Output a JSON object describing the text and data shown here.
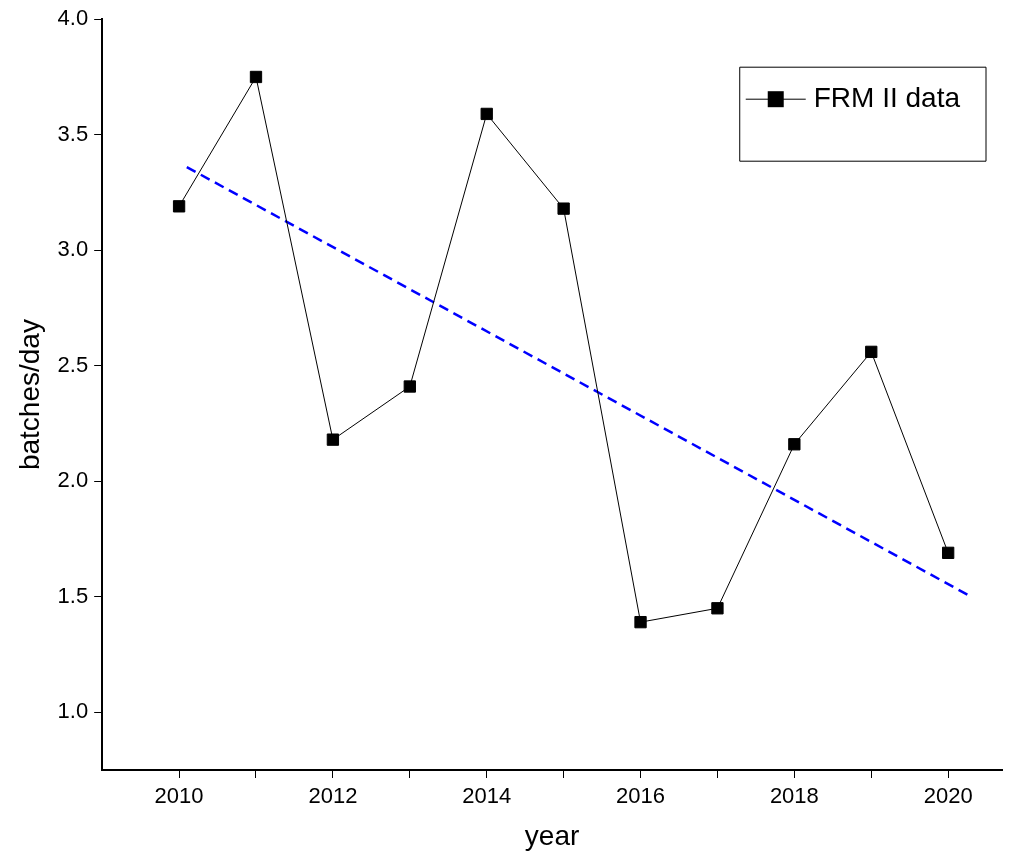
{
  "chart_data": {
    "type": "line",
    "xlabel": "year",
    "ylabel": "batches/day",
    "xlim": [
      2009,
      2020.7
    ],
    "ylim": [
      0.75,
      4.0
    ],
    "xticks": [
      2010,
      {
        "value": 2011,
        "label": null
      },
      2012,
      {
        "value": 2013,
        "label": null
      },
      2014,
      {
        "value": 2015,
        "label": null
      },
      2016,
      {
        "value": 2017,
        "label": null
      },
      2018,
      {
        "value": 2019,
        "label": null
      },
      2020
    ],
    "yticks": [
      {
        "value": 1.0,
        "label": "1.0"
      },
      1.5,
      {
        "value": 2.0,
        "label": "2.0"
      },
      2.5,
      {
        "value": 3.0,
        "label": "3.0"
      },
      3.5,
      {
        "value": 4.0,
        "label": "4.0"
      }
    ],
    "grid": false,
    "legend": "top right",
    "marker": "square",
    "line_style": "solid",
    "series": [
      {
        "name": "FRM II data",
        "color": "#000000",
        "x": [
          2010,
          2011,
          2012,
          2013,
          2014,
          2015,
          2016,
          2017,
          2018,
          2019,
          2020
        ],
        "values": [
          3.19,
          3.75,
          2.18,
          2.41,
          3.59,
          3.18,
          1.39,
          1.45,
          2.16,
          2.56,
          1.69
        ]
      },
      {
        "type": "line",
        "color": "#0000ff",
        "marker": "none",
        "line_style": "dashed",
        "x": [
          2010.1,
          2020.3
        ],
        "values": [
          3.36,
          1.5
        ]
      }
    ]
  }
}
